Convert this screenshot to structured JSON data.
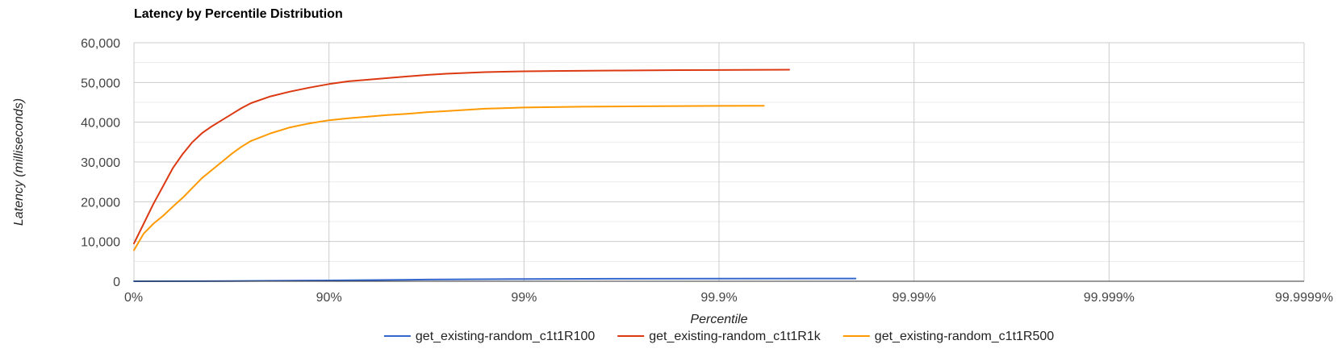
{
  "chart_data": {
    "type": "line",
    "title": "Latency by Percentile Distribution",
    "xlabel": "Percentile",
    "ylabel": "Latency (milliseconds)",
    "x_scale": "log-nines",
    "x_domain": [
      0,
      6
    ],
    "x_ticks": [
      {
        "value": 0,
        "label": "0%"
      },
      {
        "value": 1,
        "label": "90%"
      },
      {
        "value": 2,
        "label": "99%"
      },
      {
        "value": 3,
        "label": "99.9%"
      },
      {
        "value": 4,
        "label": "99.99%"
      },
      {
        "value": 5,
        "label": "99.999%"
      },
      {
        "value": 6,
        "label": "99.9999%"
      }
    ],
    "ylim": [
      0,
      60000
    ],
    "y_ticks": [
      {
        "value": 0,
        "label": "0"
      },
      {
        "value": 10000,
        "label": "10,000"
      },
      {
        "value": 20000,
        "label": "20,000"
      },
      {
        "value": 30000,
        "label": "30,000"
      },
      {
        "value": 40000,
        "label": "40,000"
      },
      {
        "value": 50000,
        "label": "50,000"
      },
      {
        "value": 60000,
        "label": "60,000"
      }
    ],
    "grid": true,
    "minor_y_grid": true,
    "legend_position": "bottom",
    "series": [
      {
        "name": "get_existing-random_c1t1R100",
        "color": "#3366cc",
        "points": [
          [
            0.0,
            0
          ],
          [
            0.5,
            50
          ],
          [
            1.0,
            200
          ],
          [
            1.5,
            420
          ],
          [
            2.0,
            560
          ],
          [
            2.5,
            620
          ],
          [
            3.0,
            660
          ],
          [
            3.5,
            680
          ],
          [
            3.7,
            690
          ]
        ]
      },
      {
        "name": "get_existing-random_c1t1R1k",
        "color": "#dc3912",
        "points": [
          [
            0.0,
            9500
          ],
          [
            0.05,
            14500
          ],
          [
            0.1,
            19500
          ],
          [
            0.15,
            24000
          ],
          [
            0.2,
            28500
          ],
          [
            0.25,
            32000
          ],
          [
            0.3,
            35000
          ],
          [
            0.35,
            37300
          ],
          [
            0.4,
            39000
          ],
          [
            0.45,
            40500
          ],
          [
            0.5,
            42000
          ],
          [
            0.55,
            43500
          ],
          [
            0.6,
            44800
          ],
          [
            0.7,
            46500
          ],
          [
            0.8,
            47700
          ],
          [
            0.9,
            48700
          ],
          [
            1.0,
            49600
          ],
          [
            1.1,
            50300
          ],
          [
            1.2,
            50700
          ],
          [
            1.3,
            51100
          ],
          [
            1.4,
            51500
          ],
          [
            1.5,
            51900
          ],
          [
            1.6,
            52200
          ],
          [
            1.7,
            52400
          ],
          [
            1.8,
            52600
          ],
          [
            2.0,
            52800
          ],
          [
            2.2,
            52900
          ],
          [
            2.5,
            53000
          ],
          [
            2.8,
            53100
          ],
          [
            3.1,
            53150
          ],
          [
            3.36,
            53200
          ]
        ]
      },
      {
        "name": "get_existing-random_c1t1R500",
        "color": "#ff9900",
        "points": [
          [
            0.0,
            7800
          ],
          [
            0.05,
            12000
          ],
          [
            0.1,
            14500
          ],
          [
            0.15,
            16500
          ],
          [
            0.2,
            18800
          ],
          [
            0.25,
            21000
          ],
          [
            0.3,
            23500
          ],
          [
            0.35,
            26000
          ],
          [
            0.4,
            28000
          ],
          [
            0.45,
            30000
          ],
          [
            0.5,
            32000
          ],
          [
            0.55,
            33800
          ],
          [
            0.6,
            35300
          ],
          [
            0.7,
            37200
          ],
          [
            0.8,
            38700
          ],
          [
            0.9,
            39700
          ],
          [
            1.0,
            40500
          ],
          [
            1.1,
            41000
          ],
          [
            1.2,
            41400
          ],
          [
            1.3,
            41800
          ],
          [
            1.4,
            42100
          ],
          [
            1.5,
            42500
          ],
          [
            1.6,
            42800
          ],
          [
            1.7,
            43100
          ],
          [
            1.8,
            43400
          ],
          [
            2.0,
            43700
          ],
          [
            2.3,
            43900
          ],
          [
            2.6,
            44000
          ],
          [
            3.0,
            44100
          ],
          [
            3.23,
            44150
          ]
        ]
      }
    ]
  }
}
